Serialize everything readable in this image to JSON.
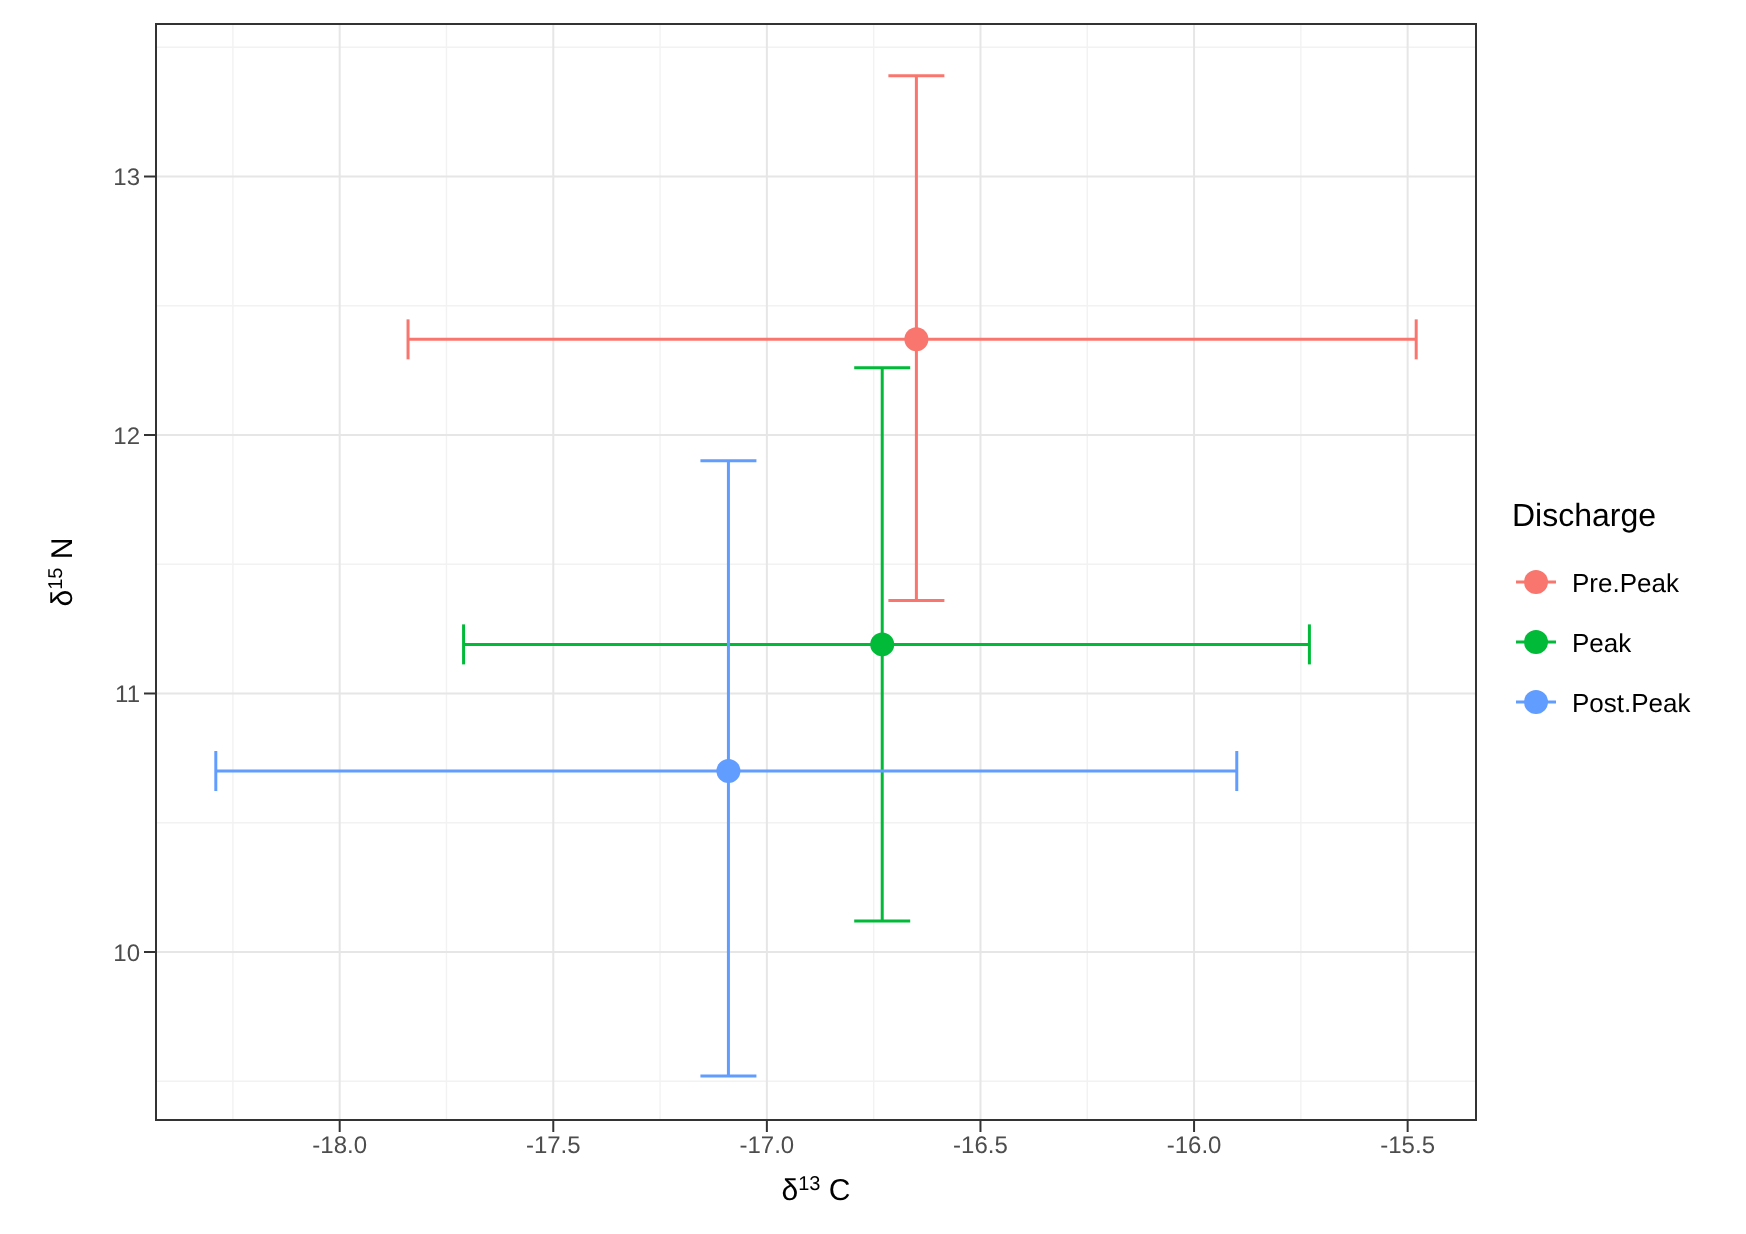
{
  "chart_data": {
    "type": "scatter",
    "xlabel": "δ$^{13}$ C",
    "ylabel": "δ$^{15}$ N",
    "legend_title": "Discharge",
    "legend": "right",
    "grid": true,
    "marker": "circle",
    "xlim": [
      -18.43,
      -15.34
    ],
    "xticks": [
      {
        "value": -18,
        "label": "-18.0"
      },
      -17.5,
      {
        "value": -17,
        "label": "-17.0"
      },
      -16.5,
      {
        "value": -16,
        "label": "-16.0"
      },
      -15.5
    ],
    "ylim": [
      9.35,
      13.59
    ],
    "yticks": [
      10,
      11,
      12,
      13
    ],
    "series": [
      {
        "name": "Pre.Peak",
        "color": "#f8766d",
        "x": [
          -16.65
        ],
        "values": [
          12.37
        ],
        "errors": [
          [
            11.36,
            13.39
          ]
        ],
        "xerrors": [
          [
            -17.84,
            -15.48
          ]
        ]
      },
      {
        "name": "Peak",
        "color": "#00ba38",
        "x": [
          -16.73
        ],
        "values": [
          11.19
        ],
        "errors": [
          [
            10.12,
            12.26
          ]
        ],
        "xerrors": [
          [
            -17.71,
            -15.73
          ]
        ]
      },
      {
        "name": "Post.Peak",
        "color": "#619cff",
        "x": [
          -17.09
        ],
        "values": [
          10.7
        ],
        "errors": [
          [
            9.52,
            11.9
          ]
        ],
        "xerrors": [
          [
            -18.29,
            -15.9
          ]
        ]
      }
    ]
  }
}
